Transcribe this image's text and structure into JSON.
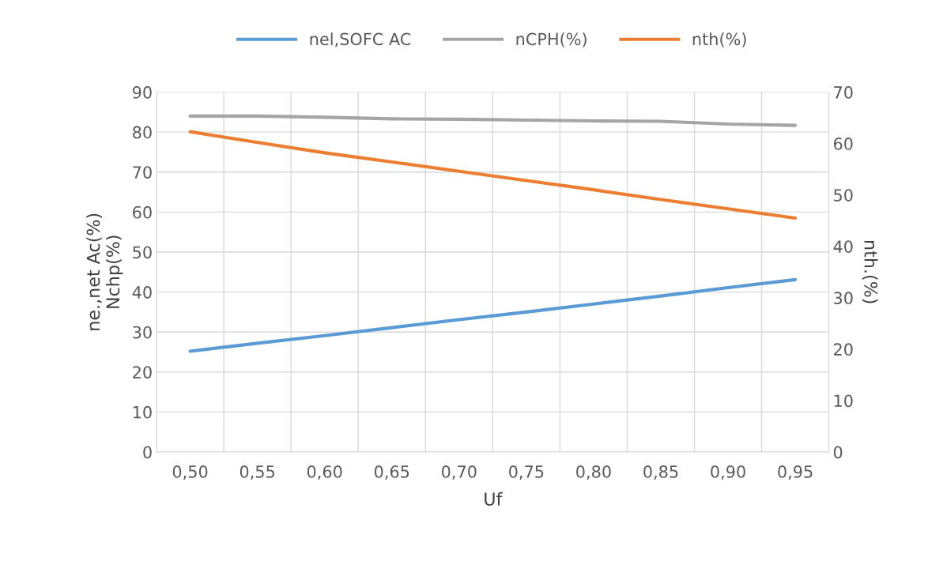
{
  "chart_data": {
    "type": "line",
    "xlabel": "Uf",
    "ylabel": "ne.,net Ac(%)\nNchp(%)",
    "y2label": "nth.(%)",
    "categories": [
      "0,50",
      "0,55",
      "0,60",
      "0,65",
      "0,70",
      "0,75",
      "0,80",
      "0,85",
      "0,90",
      "0,95"
    ],
    "series": [
      {
        "name": "nel,SOFC AC",
        "color": "#5b9bd5",
        "values": [
          25.2,
          27.2,
          29.1,
          31.1,
          33.1,
          35.0,
          37.0,
          39.0,
          41.1,
          43.1
        ]
      },
      {
        "name": "nCPH(%)",
        "color": "#a5a5a5",
        "values": [
          84.0,
          84.0,
          83.7,
          83.3,
          83.2,
          83.0,
          82.8,
          82.7,
          82.0,
          81.7
        ]
      },
      {
        "name": "nth(%)",
        "color": "#ed7d31",
        "axis": "y2",
        "values": [
          62.3,
          60.2,
          58.2,
          56.4,
          54.6,
          52.8,
          51.0,
          49.1,
          47.3,
          45.5
        ]
      }
    ],
    "ylim": [
      0,
      90
    ],
    "yticks": [
      0,
      10,
      20,
      30,
      40,
      50,
      60,
      70,
      80,
      90
    ],
    "y2lim": [
      0,
      70
    ],
    "y2ticks": [
      0,
      10,
      20,
      30,
      40,
      50,
      60,
      70
    ],
    "grid": true,
    "legend": "top",
    "marker": "none",
    "line_style": "solid"
  }
}
